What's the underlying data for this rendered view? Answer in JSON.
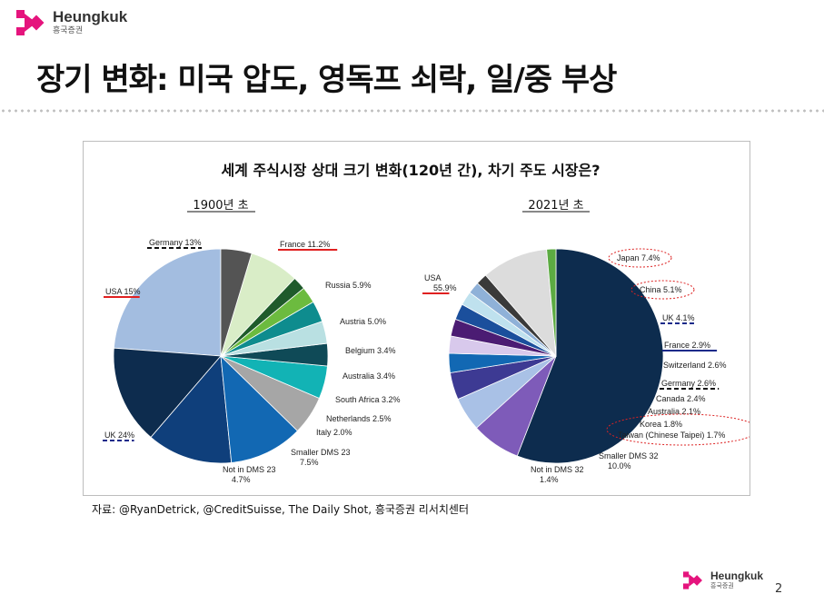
{
  "brand": {
    "name": "Heungkuk",
    "subname": "흥국증권"
  },
  "slide": {
    "title": "장기 변화: 미국 압도, 영독프 쇠락, 일/중 부상",
    "source": "자료:  @RyanDetrick, @CreditSuisse,  The Daily Shot, 흥국증권 리서치센터",
    "page_number": "2"
  },
  "chart_data": [
    {
      "type": "pie",
      "title": "세계 주식시장 상대 크기 변화(120년 간), 차기 주도 시장은?",
      "subtitle": "1900년 초",
      "unit": "%",
      "slices": [
        {
          "name": "UK",
          "label": "UK 24%",
          "value": 24.0,
          "color": "#a3bde0",
          "mark": "dashed-navy"
        },
        {
          "name": "USA",
          "label": "USA 15%",
          "value": 15.0,
          "color": "#0d2c4e",
          "mark": "solid-red"
        },
        {
          "name": "Germany",
          "label": "Germany 13%",
          "value": 13.0,
          "color": "#0f3f7b",
          "mark": "dashed-black"
        },
        {
          "name": "France",
          "label": "France 11.2%",
          "value": 11.2,
          "color": "#1268b3",
          "mark": "solid-red"
        },
        {
          "name": "Russia",
          "label": "Russia 5.9%",
          "value": 5.9,
          "color": "#a6a6a6"
        },
        {
          "name": "Austria",
          "label": "Austria 5.0%",
          "value": 5.0,
          "color": "#12b3b5"
        },
        {
          "name": "Belgium",
          "label": "Belgium 3.4%",
          "value": 3.4,
          "color": "#0f4a57"
        },
        {
          "name": "Australia",
          "label": "Australia 3.4%",
          "value": 3.4,
          "color": "#b9e0e2"
        },
        {
          "name": "South Africa",
          "label": "South Africa 3.2%",
          "value": 3.2,
          "color": "#0e8c8e"
        },
        {
          "name": "Netherlands",
          "label": "Netherlands 2.5%",
          "value": 2.5,
          "color": "#6cbb3f"
        },
        {
          "name": "Italy",
          "label": "Italy 2.0%",
          "value": 2.0,
          "color": "#1f5b2b"
        },
        {
          "name": "Smaller DMS 23",
          "label": [
            "Smaller DMS 23",
            "7.5%"
          ],
          "value": 7.5,
          "color": "#d9edc7"
        },
        {
          "name": "Not in DMS 23",
          "label": [
            "Not in DMS 23",
            "4.7%"
          ],
          "value": 4.7,
          "color": "#545454"
        }
      ]
    },
    {
      "type": "pie",
      "subtitle": "2021년 초",
      "unit": "%",
      "slices": [
        {
          "name": "USA",
          "label": [
            "USA",
            "55.9%"
          ],
          "value": 55.9,
          "color": "#0d2c4e",
          "mark": "solid-red"
        },
        {
          "name": "Japan",
          "label": "Japan 7.4%",
          "value": 7.4,
          "color": "#7e5bb9",
          "mark": "dotted-red-ellipse"
        },
        {
          "name": "China",
          "label": "China 5.1%",
          "value": 5.1,
          "color": "#a9c1e6",
          "mark": "dotted-red-ellipse"
        },
        {
          "name": "UK",
          "label": "UK 4.1%",
          "value": 4.1,
          "color": "#3d3a93",
          "mark": "dashed-navy"
        },
        {
          "name": "France",
          "label": "France 2.9%",
          "value": 2.9,
          "color": "#1268b3",
          "mark": "solid-navy"
        },
        {
          "name": "Switzerland",
          "label": "Switzerland 2.6%",
          "value": 2.6,
          "color": "#d8c9ec"
        },
        {
          "name": "Germany",
          "label": "Germany 2.6%",
          "value": 2.6,
          "color": "#4b1c73",
          "mark": "dashed-black"
        },
        {
          "name": "Canada",
          "label": "Canada 2.4%",
          "value": 2.4,
          "color": "#1b4f9c"
        },
        {
          "name": "Australia",
          "label": "Australia 2.1%",
          "value": 2.1,
          "color": "#bfe1ee"
        },
        {
          "name": "Korea",
          "label": "Korea 1.8%",
          "value": 1.8,
          "color": "#8fb1d8",
          "mark": "dotted-red-ellipse-group"
        },
        {
          "name": "Taiwan",
          "label": "Taiwan (Chinese Taipei) 1.7%",
          "value": 1.7,
          "color": "#3a3a3a",
          "mark": "dotted-red-ellipse-group"
        },
        {
          "name": "Smaller DMS 32",
          "label": [
            "Smaller DMS 32",
            "10.0%"
          ],
          "value": 10.0,
          "color": "#dcdcdc"
        },
        {
          "name": "Not in DMS 32",
          "label": [
            "Not in DMS 32",
            "1.4%"
          ],
          "value": 1.4,
          "color": "#5cab42"
        }
      ]
    }
  ]
}
